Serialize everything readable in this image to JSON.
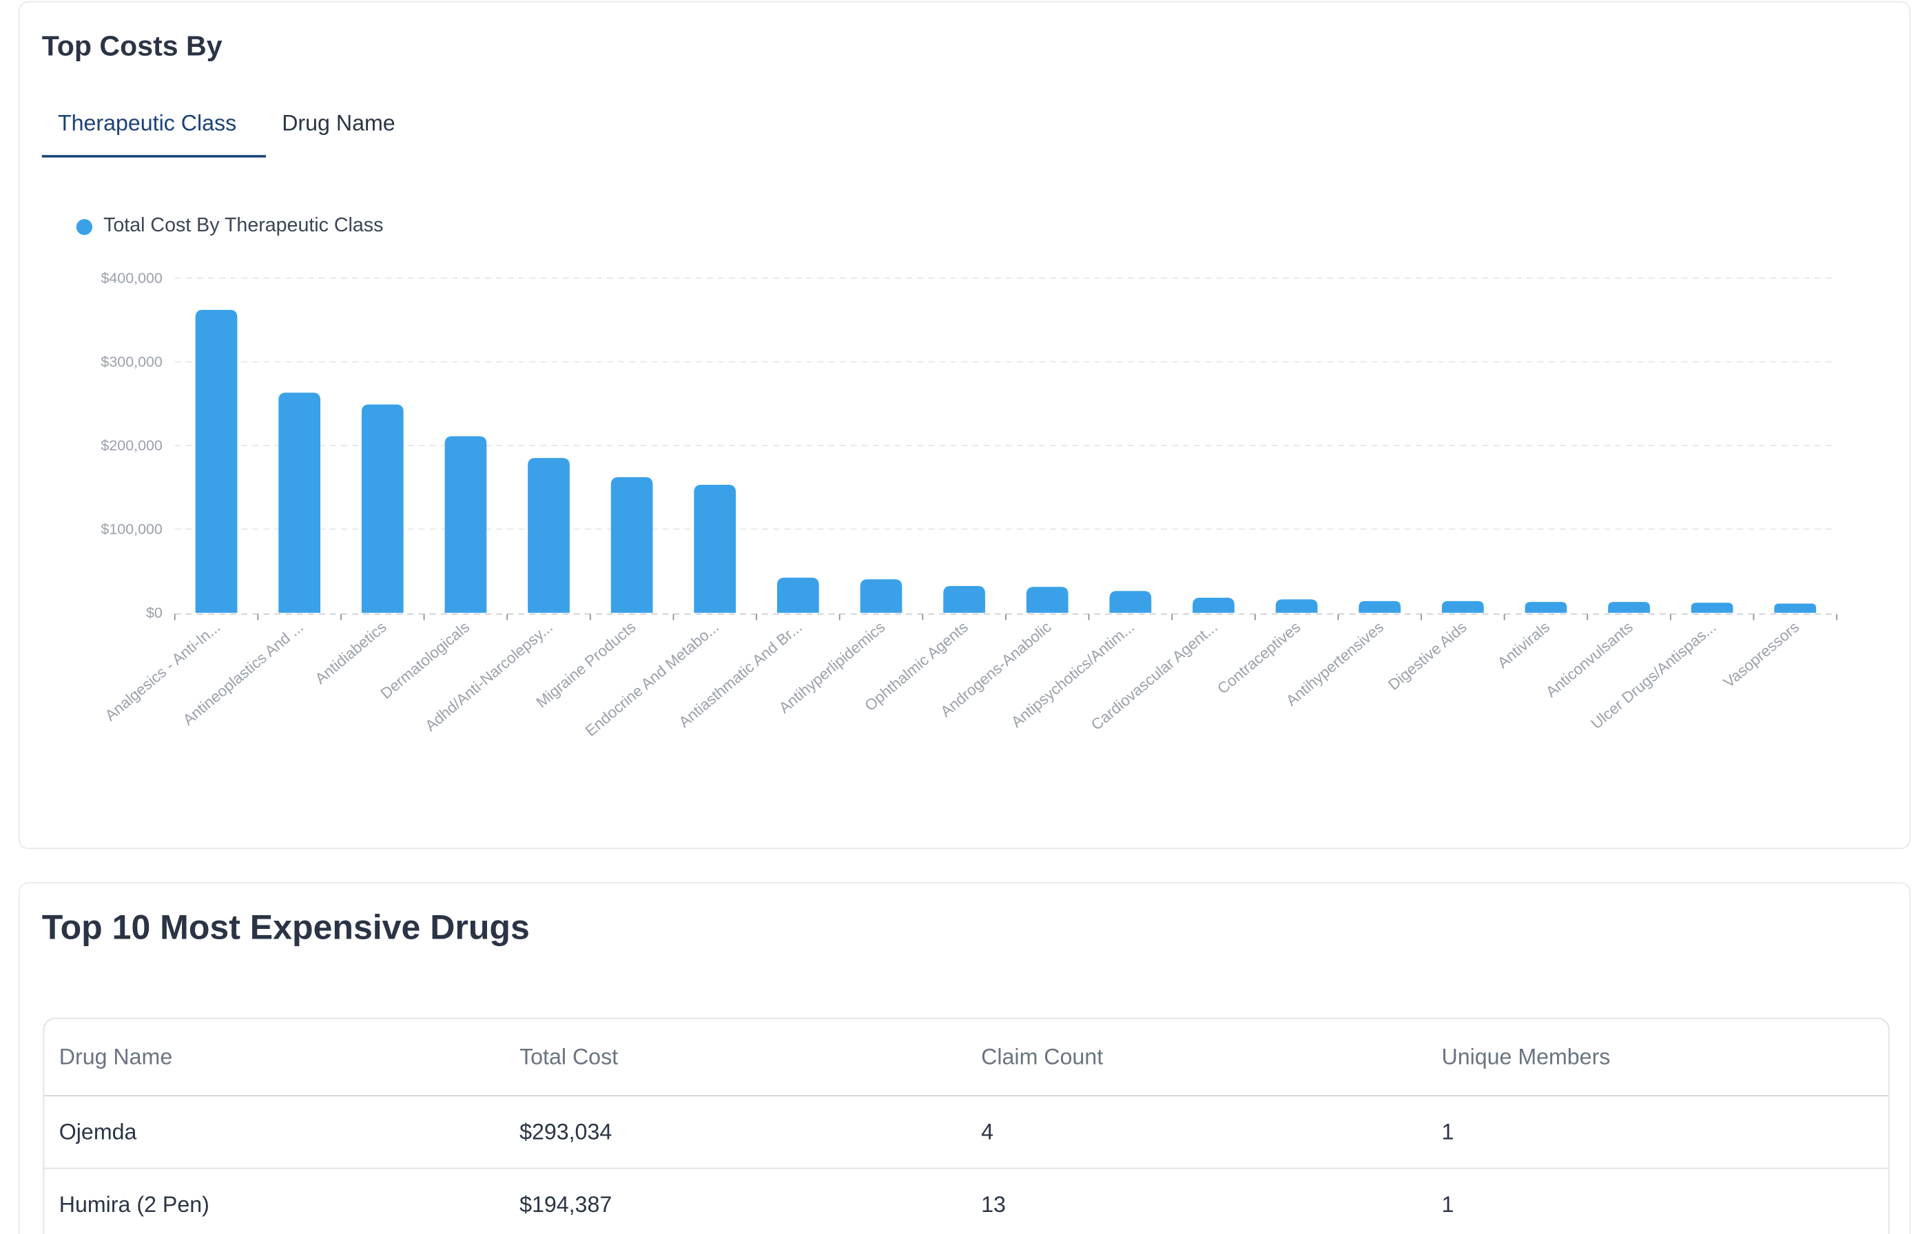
{
  "costs_card": {
    "title": "Top Costs By",
    "tabs": [
      {
        "label": "Therapeutic Class",
        "active": true
      },
      {
        "label": "Drug Name",
        "active": false
      }
    ]
  },
  "colors": {
    "bar": "#3aa1e9",
    "active_tab": "#1b4279",
    "text": "#2b3445",
    "muted": "#9aa1ab"
  },
  "chart_data": {
    "type": "bar",
    "legend": "Total Cost By Therapeutic Class",
    "legend_position": "top-left",
    "grid": true,
    "ylim": [
      0,
      400000
    ],
    "yticks": [
      "$0",
      "$100,000",
      "$200,000",
      "$300,000",
      "$400,000"
    ],
    "categories": [
      "Analgesics - Anti-In...",
      "Antineoplastics And ...",
      "Antidiabetics",
      "Dermatologicals",
      "Adhd/Anti-Narcolepsy...",
      "Migraine Products",
      "Endocrine And Metabo...",
      "Antiasthmatic And Br...",
      "Antihyperlipidemics",
      "Ophthalmic Agents",
      "Androgens-Anabolic",
      "Antipsychotics/Antim...",
      "Cardiovascular Agent...",
      "Contraceptives",
      "Antihypertensives",
      "Digestive Aids",
      "Antivirals",
      "Anticonvulsants",
      "Ulcer Drugs/Antispas...",
      "Vasopressors"
    ],
    "series": [
      {
        "name": "Total Cost By Therapeutic Class",
        "values": [
          362000,
          263000,
          249000,
          211000,
          185000,
          162000,
          153000,
          42000,
          40000,
          32000,
          31000,
          26000,
          18000,
          16000,
          14000,
          14000,
          13000,
          13000,
          12000,
          11000
        ]
      }
    ]
  },
  "drugs_card": {
    "title": "Top 10 Most Expensive Drugs",
    "columns": [
      "Drug Name",
      "Total Cost",
      "Claim Count",
      "Unique Members"
    ],
    "rows": [
      [
        "Ojemda",
        "$293,034",
        "4",
        "1"
      ],
      [
        "Humira (2 Pen)",
        "$194,387",
        "13",
        "1"
      ]
    ]
  }
}
